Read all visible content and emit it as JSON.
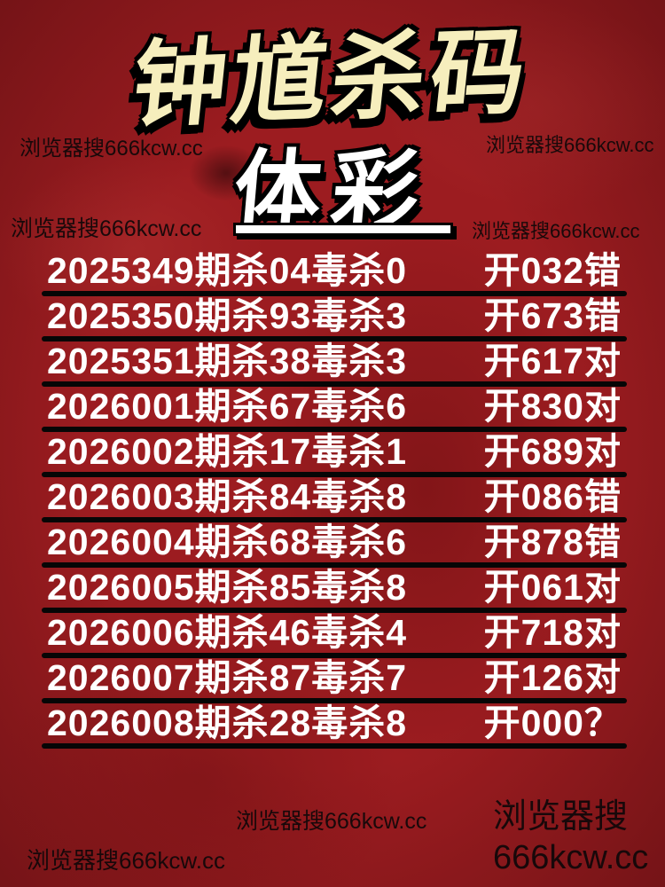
{
  "header": {
    "title": "钟馗杀码",
    "subtitle": "体彩"
  },
  "watermarks": {
    "search_hint": "浏览器搜666kcw.cc",
    "bottom_right_line1": "浏览器搜",
    "bottom_right_line2": "666kcw.cc"
  },
  "records": {
    "rows": [
      {
        "issue": "2025349",
        "kill_pair": "04",
        "poison_kill": "0",
        "open": "032",
        "verdict": "错",
        "left": "2025349期杀04毒杀0",
        "right": "开032错"
      },
      {
        "issue": "2025350",
        "kill_pair": "93",
        "poison_kill": "3",
        "open": "673",
        "verdict": "错",
        "left": "2025350期杀93毒杀3",
        "right": "开673错"
      },
      {
        "issue": "2025351",
        "kill_pair": "38",
        "poison_kill": "3",
        "open": "617",
        "verdict": "对",
        "left": "2025351期杀38毒杀3",
        "right": "开617对"
      },
      {
        "issue": "2026001",
        "kill_pair": "67",
        "poison_kill": "6",
        "open": "830",
        "verdict": "对",
        "left": "2026001期杀67毒杀6",
        "right": "开830对"
      },
      {
        "issue": "2026002",
        "kill_pair": "17",
        "poison_kill": "1",
        "open": "689",
        "verdict": "对",
        "left": "2026002期杀17毒杀1",
        "right": "开689对"
      },
      {
        "issue": "2026003",
        "kill_pair": "84",
        "poison_kill": "8",
        "open": "086",
        "verdict": "错",
        "left": "2026003期杀84毒杀8",
        "right": "开086错"
      },
      {
        "issue": "2026004",
        "kill_pair": "68",
        "poison_kill": "6",
        "open": "878",
        "verdict": "错",
        "left": "2026004期杀68毒杀6",
        "right": "开878错"
      },
      {
        "issue": "2026005",
        "kill_pair": "85",
        "poison_kill": "8",
        "open": "061",
        "verdict": "对",
        "left": "2026005期杀85毒杀8",
        "right": "开061对"
      },
      {
        "issue": "2026006",
        "kill_pair": "46",
        "poison_kill": "4",
        "open": "718",
        "verdict": "对",
        "left": "2026006期杀46毒杀4",
        "right": "开718对"
      },
      {
        "issue": "2026007",
        "kill_pair": "87",
        "poison_kill": "7",
        "open": "126",
        "verdict": "对",
        "left": "2026007期杀87毒杀7",
        "right": "开126对"
      },
      {
        "issue": "2026008",
        "kill_pair": "28",
        "poison_kill": "8",
        "open": "000",
        "verdict": "？",
        "left": "2026008期杀28毒杀8",
        "right": "开000？"
      }
    ]
  },
  "colors": {
    "background_red": "#9C1C20",
    "title_cream": "#F6EEBD",
    "subtitle_white": "#FFFFFF",
    "row_text_white": "#FFFFFF",
    "divider_black": "#060606",
    "watermark_black": "#0E0809"
  }
}
